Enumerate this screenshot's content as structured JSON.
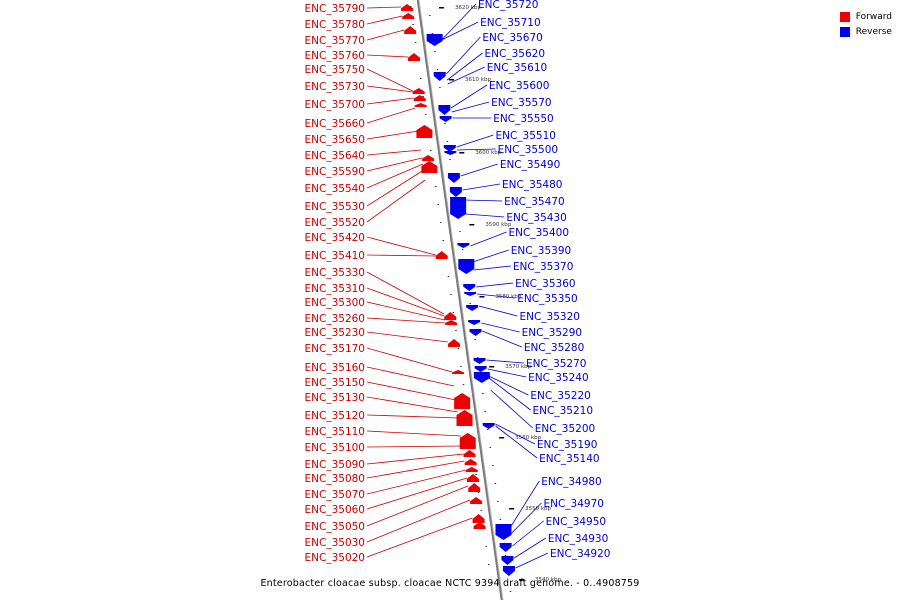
{
  "caption": "Enterobacter cloacae subsp. cloacae NCTC 9394 draft genome. - 0..4908759",
  "legend": [
    {
      "label": "Forward",
      "color": "#ee0000"
    },
    {
      "label": "Reverse",
      "color": "#0000ee"
    }
  ],
  "colors": {
    "forward": "#ee0000",
    "reverse": "#0000ee",
    "label_forward": "#cc0000",
    "label_reverse": "#0000cc",
    "backbone": "#999999"
  },
  "ticks": [
    "3620 kbp",
    "3610 kbp",
    "3600 kbp",
    "3590 kbp",
    "3580 kbp",
    "3570 kbp",
    "3560 kbp",
    "3550 kbp",
    "3540 kbp"
  ],
  "forward_genes": [
    "ENC_35790",
    "ENC_35780",
    "ENC_35770",
    "ENC_35760",
    "ENC_35750",
    "ENC_35730",
    "ENC_35700",
    "ENC_35660",
    "ENC_35650",
    "ENC_35640",
    "ENC_35590",
    "ENC_35540",
    "ENC_35530",
    "ENC_35520",
    "ENC_35420",
    "ENC_35410",
    "ENC_35330",
    "ENC_35310",
    "ENC_35300",
    "ENC_35260",
    "ENC_35230",
    "ENC_35170",
    "ENC_35160",
    "ENC_35150",
    "ENC_35130",
    "ENC_35120",
    "ENC_35110",
    "ENC_35100",
    "ENC_35090",
    "ENC_35080",
    "ENC_35070",
    "ENC_35060",
    "ENC_35050",
    "ENC_35030",
    "ENC_35020"
  ],
  "reverse_genes": [
    "ENC_35720",
    "ENC_35710",
    "ENC_35670",
    "ENC_35620",
    "ENC_35610",
    "ENC_35600",
    "ENC_35570",
    "ENC_35550",
    "ENC_35510",
    "ENC_35500",
    "ENC_35490",
    "ENC_35480",
    "ENC_35470",
    "ENC_35430",
    "ENC_35400",
    "ENC_35390",
    "ENC_35370",
    "ENC_35360",
    "ENC_35350",
    "ENC_35320",
    "ENC_35290",
    "ENC_35280",
    "ENC_35270",
    "ENC_35240",
    "ENC_35220",
    "ENC_35210",
    "ENC_35200",
    "ENC_35190",
    "ENC_35140",
    "ENC_34980",
    "ENC_34970",
    "ENC_34950",
    "ENC_34930",
    "ENC_34920"
  ]
}
